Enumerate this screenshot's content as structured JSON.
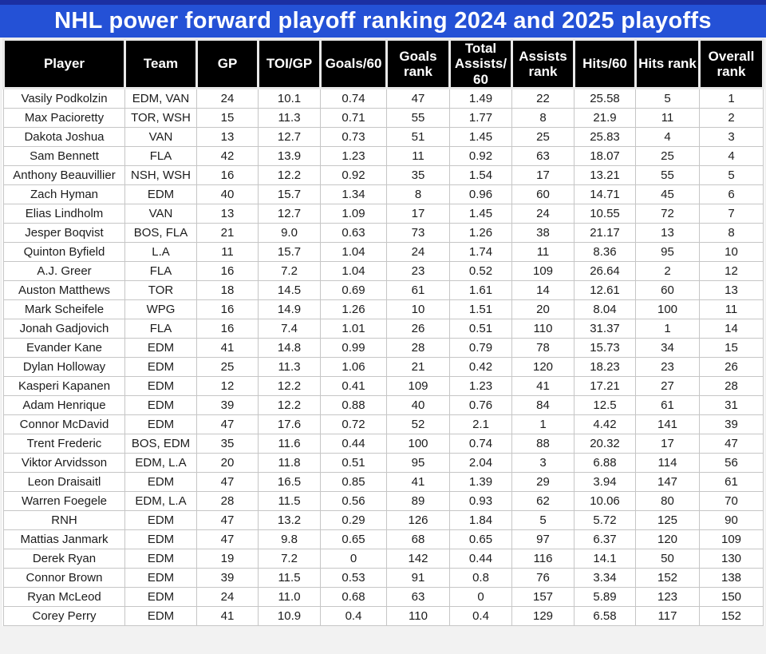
{
  "title": "NHL power forward playoff ranking 2024 and 2025 playoffs",
  "colors": {
    "banner_blue": "#2451d6",
    "banner_dark_strip": "#1b2fa2",
    "header_bg": "#000000",
    "header_text": "#ffffff",
    "cell_border": "#c6c6c6"
  },
  "chart_data": {
    "type": "table",
    "title": "NHL power forward playoff ranking 2024 and 2025 playoffs",
    "columns": [
      "Player",
      "Team",
      "GP",
      "TOI/GP",
      "Goals/60",
      "Goals rank",
      "Total Assists/60",
      "Assists rank",
      "Hits/60",
      "Hits rank",
      "Overall rank"
    ],
    "rows": [
      [
        "Vasily Podkolzin",
        "EDM, VAN",
        "24",
        "10.1",
        "0.74",
        "47",
        "1.49",
        "22",
        "25.58",
        "5",
        "1"
      ],
      [
        "Max Pacioretty",
        "TOR, WSH",
        "15",
        "11.3",
        "0.71",
        "55",
        "1.77",
        "8",
        "21.9",
        "11",
        "2"
      ],
      [
        "Dakota Joshua",
        "VAN",
        "13",
        "12.7",
        "0.73",
        "51",
        "1.45",
        "25",
        "25.83",
        "4",
        "3"
      ],
      [
        "Sam Bennett",
        "FLA",
        "42",
        "13.9",
        "1.23",
        "11",
        "0.92",
        "63",
        "18.07",
        "25",
        "4"
      ],
      [
        "Anthony Beauvillier",
        "NSH, WSH",
        "16",
        "12.2",
        "0.92",
        "35",
        "1.54",
        "17",
        "13.21",
        "55",
        "5"
      ],
      [
        "Zach Hyman",
        "EDM",
        "40",
        "15.7",
        "1.34",
        "8",
        "0.96",
        "60",
        "14.71",
        "45",
        "6"
      ],
      [
        "Elias Lindholm",
        "VAN",
        "13",
        "12.7",
        "1.09",
        "17",
        "1.45",
        "24",
        "10.55",
        "72",
        "7"
      ],
      [
        "Jesper Boqvist",
        "BOS, FLA",
        "21",
        "9.0",
        "0.63",
        "73",
        "1.26",
        "38",
        "21.17",
        "13",
        "8"
      ],
      [
        "Quinton Byfield",
        "L.A",
        "11",
        "15.7",
        "1.04",
        "24",
        "1.74",
        "11",
        "8.36",
        "95",
        "10"
      ],
      [
        "A.J. Greer",
        "FLA",
        "16",
        "7.2",
        "1.04",
        "23",
        "0.52",
        "109",
        "26.64",
        "2",
        "12"
      ],
      [
        "Auston Matthews",
        "TOR",
        "18",
        "14.5",
        "0.69",
        "61",
        "1.61",
        "14",
        "12.61",
        "60",
        "13"
      ],
      [
        "Mark Scheifele",
        "WPG",
        "16",
        "14.9",
        "1.26",
        "10",
        "1.51",
        "20",
        "8.04",
        "100",
        "11"
      ],
      [
        "Jonah Gadjovich",
        "FLA",
        "16",
        "7.4",
        "1.01",
        "26",
        "0.51",
        "110",
        "31.37",
        "1",
        "14"
      ],
      [
        "Evander Kane",
        "EDM",
        "41",
        "14.8",
        "0.99",
        "28",
        "0.79",
        "78",
        "15.73",
        "34",
        "15"
      ],
      [
        "Dylan Holloway",
        "EDM",
        "25",
        "11.3",
        "1.06",
        "21",
        "0.42",
        "120",
        "18.23",
        "23",
        "26"
      ],
      [
        "Kasperi Kapanen",
        "EDM",
        "12",
        "12.2",
        "0.41",
        "109",
        "1.23",
        "41",
        "17.21",
        "27",
        "28"
      ],
      [
        "Adam Henrique",
        "EDM",
        "39",
        "12.2",
        "0.88",
        "40",
        "0.76",
        "84",
        "12.5",
        "61",
        "31"
      ],
      [
        "Connor McDavid",
        "EDM",
        "47",
        "17.6",
        "0.72",
        "52",
        "2.1",
        "1",
        "4.42",
        "141",
        "39"
      ],
      [
        "Trent Frederic",
        "BOS, EDM",
        "35",
        "11.6",
        "0.44",
        "100",
        "0.74",
        "88",
        "20.32",
        "17",
        "47"
      ],
      [
        "Viktor Arvidsson",
        "EDM, L.A",
        "20",
        "11.8",
        "0.51",
        "95",
        "2.04",
        "3",
        "6.88",
        "114",
        "56"
      ],
      [
        "Leon Draisaitl",
        "EDM",
        "47",
        "16.5",
        "0.85",
        "41",
        "1.39",
        "29",
        "3.94",
        "147",
        "61"
      ],
      [
        "Warren Foegele",
        "EDM, L.A",
        "28",
        "11.5",
        "0.56",
        "89",
        "0.93",
        "62",
        "10.06",
        "80",
        "70"
      ],
      [
        "RNH",
        "EDM",
        "47",
        "13.2",
        "0.29",
        "126",
        "1.84",
        "5",
        "5.72",
        "125",
        "90"
      ],
      [
        "Mattias Janmark",
        "EDM",
        "47",
        "9.8",
        "0.65",
        "68",
        "0.65",
        "97",
        "6.37",
        "120",
        "109"
      ],
      [
        "Derek Ryan",
        "EDM",
        "19",
        "7.2",
        "0",
        "142",
        "0.44",
        "116",
        "14.1",
        "50",
        "130"
      ],
      [
        "Connor Brown",
        "EDM",
        "39",
        "11.5",
        "0.53",
        "91",
        "0.8",
        "76",
        "3.34",
        "152",
        "138"
      ],
      [
        "Ryan McLeod",
        "EDM",
        "24",
        "11.0",
        "0.68",
        "63",
        "0",
        "157",
        "5.89",
        "123",
        "150"
      ],
      [
        "Corey Perry",
        "EDM",
        "41",
        "10.9",
        "0.4",
        "110",
        "0.4",
        "129",
        "6.58",
        "117",
        "152"
      ]
    ]
  }
}
